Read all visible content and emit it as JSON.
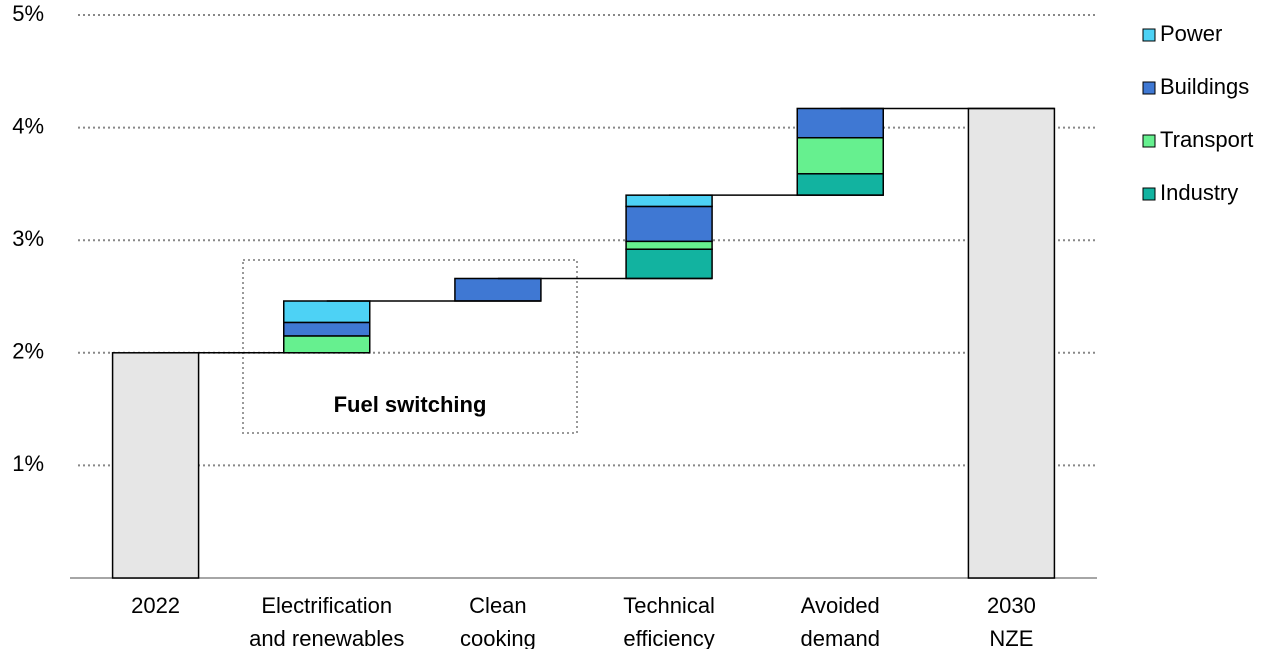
{
  "chart_data": {
    "type": "waterfall",
    "categories": [
      [
        "2022"
      ],
      [
        "Electrification",
        "and renewables"
      ],
      [
        "Clean",
        "cooking"
      ],
      [
        "Technical",
        "efficiency"
      ],
      [
        "Avoided",
        "demand"
      ],
      [
        "2030",
        "NZE"
      ]
    ],
    "totals": [
      2.0,
      null,
      null,
      null,
      null,
      4.17
    ],
    "total_color": "#e6e6e6",
    "series": [
      {
        "name": "Industry",
        "color": "#12b3a0",
        "values": [
          null,
          null,
          null,
          0.26,
          0.19,
          null
        ]
      },
      {
        "name": "Transport",
        "color": "#66f08f",
        "values": [
          null,
          0.15,
          null,
          0.07,
          0.32,
          null
        ]
      },
      {
        "name": "Buildings",
        "color": "#3f78d3",
        "values": [
          null,
          0.12,
          0.2,
          0.31,
          0.26,
          null
        ]
      },
      {
        "name": "Power",
        "color": "#4dd2f5",
        "values": [
          null,
          0.19,
          null,
          0.1,
          null,
          null
        ]
      }
    ],
    "ylim": [
      0,
      5
    ],
    "yticks": [
      {
        "value": 1,
        "label": "1%"
      },
      {
        "value": 2,
        "label": "2%"
      },
      {
        "value": 3,
        "label": "3%"
      },
      {
        "value": 4,
        "label": "4%"
      },
      {
        "value": 5,
        "label": "5%"
      }
    ],
    "grid": true,
    "annotation": "Fuel switching"
  }
}
